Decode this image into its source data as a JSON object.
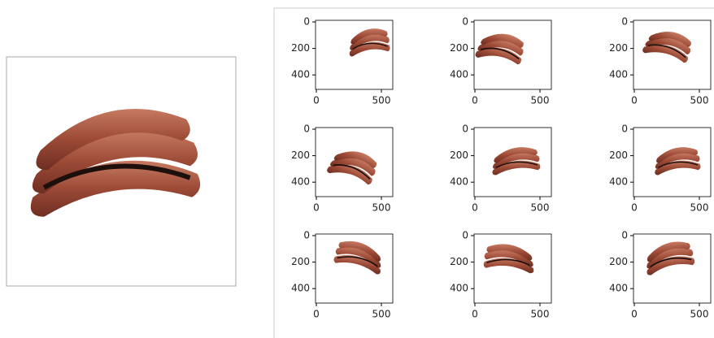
{
  "panels": [
    {
      "yticks": [
        0,
        200,
        400
      ],
      "xticks": [
        0,
        500
      ]
    },
    {
      "yticks": [
        0,
        200,
        400
      ],
      "xticks": [
        0,
        500
      ]
    },
    {
      "yticks": [
        0,
        200,
        400
      ],
      "xticks": [
        0,
        500
      ]
    },
    {
      "yticks": [
        0,
        200,
        400
      ],
      "xticks": [
        0,
        500
      ]
    },
    {
      "yticks": [
        0,
        200,
        400
      ],
      "xticks": [
        0,
        500
      ]
    },
    {
      "yticks": [
        0,
        200,
        400
      ],
      "xticks": [
        0,
        500
      ]
    },
    {
      "yticks": [
        0,
        200,
        400
      ],
      "xticks": [
        0,
        500
      ]
    },
    {
      "yticks": [
        0,
        200,
        400
      ],
      "xticks": [
        0,
        500
      ]
    },
    {
      "yticks": [
        0,
        200,
        400
      ],
      "xticks": [
        0,
        500
      ]
    }
  ]
}
